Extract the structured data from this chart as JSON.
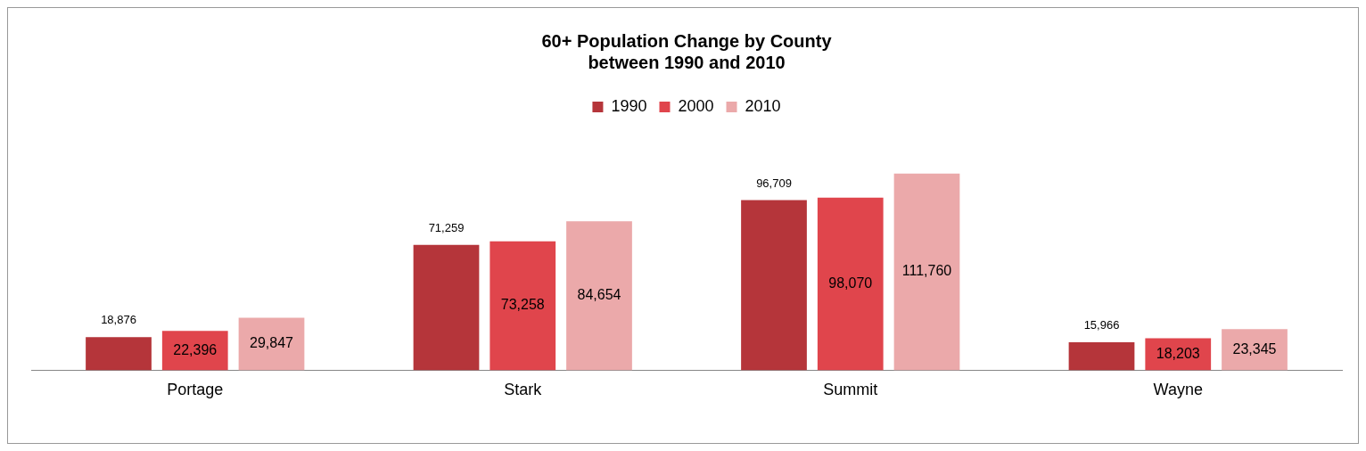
{
  "chart_data": {
    "type": "bar",
    "title": [
      "60+ Population Change by County",
      "between 1990 and 2010"
    ],
    "categories": [
      "Portage",
      "Stark",
      "Summit",
      "Wayne"
    ],
    "series": [
      {
        "name": "1990",
        "color": "#b5353a",
        "values": [
          18876,
          71259,
          96709,
          15966
        ],
        "value_labels": [
          "18,876",
          "71,259",
          "96,709",
          "15,966"
        ]
      },
      {
        "name": "2000",
        "color": "#e0454c",
        "values": [
          22396,
          73258,
          98070,
          18203
        ],
        "value_labels": [
          "22,396",
          "73,258",
          "98,070",
          "18,203"
        ]
      },
      {
        "name": "2010",
        "color": "#eba9aa",
        "values": [
          29847,
          84654,
          111760,
          23345
        ],
        "value_labels": [
          "29,847",
          "84,654",
          "111,760",
          "23,345"
        ]
      }
    ],
    "legend": "top"
  }
}
